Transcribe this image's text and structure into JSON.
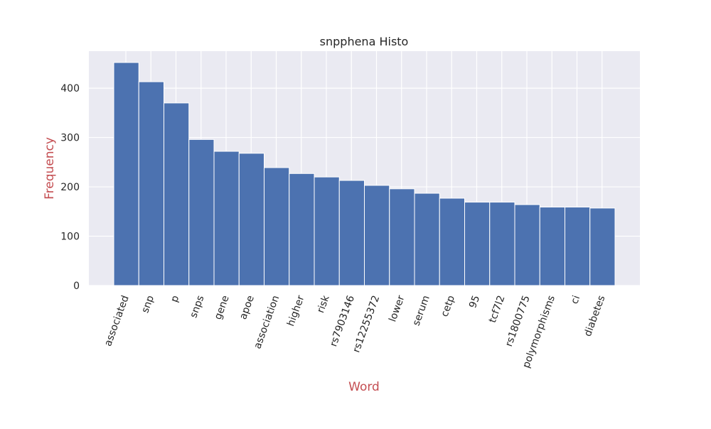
{
  "chart_data": {
    "type": "bar",
    "title": "snpphena Histo",
    "xlabel": "Word",
    "ylabel": "Frequency",
    "categories": [
      "associated",
      "snp",
      "p",
      "snps",
      "gene",
      "apoe",
      "association",
      "higher",
      "risk",
      "rs7903146",
      "rs12255372",
      "lower",
      "serum",
      "cetp",
      "95",
      "tcf7l2",
      "rs1800775",
      "polymorphisms",
      "ci",
      "diabetes"
    ],
    "values": [
      452,
      413,
      370,
      296,
      272,
      268,
      239,
      227,
      220,
      213,
      203,
      196,
      187,
      177,
      169,
      169,
      164,
      159,
      159,
      157
    ],
    "ylim": [
      0,
      475
    ],
    "yticks": [
      0,
      100,
      200,
      300,
      400
    ],
    "grid": true,
    "colors": {
      "bar": "#4c72b0",
      "axes_background": "#eaeaf2",
      "grid": "#ffffff",
      "axis_label": "#c44e52",
      "text": "#262626"
    }
  }
}
